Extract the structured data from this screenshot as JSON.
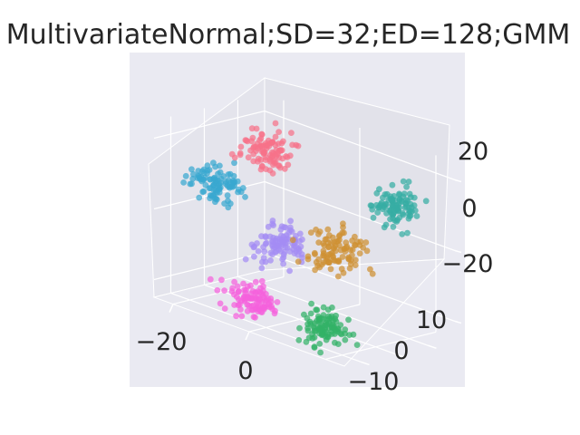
{
  "chart_data": {
    "type": "scatter3d",
    "title": "MultivariateNormal;SD=32;ED=128;GMM",
    "xlabel": "",
    "ylabel": "",
    "zlabel": "",
    "xlim": [
      -25,
      25
    ],
    "ylim": [
      -15,
      18
    ],
    "zlim": [
      -25,
      25
    ],
    "x_ticks": [
      "−20",
      "0"
    ],
    "y_ticks": [
      "−10",
      "0",
      "10"
    ],
    "z_ticks": [
      "−20",
      "0",
      "20"
    ],
    "grid": true,
    "legend": false,
    "points_per_cluster": 100,
    "clusters": [
      {
        "color": "#f77189",
        "center": [
          -10,
          2,
          18
        ],
        "spread": [
          2.5,
          2.5,
          2.5
        ]
      },
      {
        "color": "#39a7d0",
        "center": [
          -22,
          0,
          5
        ],
        "spread": [
          2.5,
          2.5,
          2.5
        ]
      },
      {
        "color": "#36ada4",
        "center": [
          18,
          8,
          12
        ],
        "spread": [
          2.5,
          2.5,
          2.5
        ]
      },
      {
        "color": "#ce9032",
        "center": [
          8,
          2,
          -3
        ],
        "spread": [
          3,
          3,
          3
        ]
      },
      {
        "color": "#a48cf4",
        "center": [
          -6,
          0,
          -6
        ],
        "spread": [
          2.5,
          2.5,
          2.5
        ]
      },
      {
        "color": "#f561dd",
        "center": [
          -10,
          -2,
          -23
        ],
        "spread": [
          2.5,
          2.5,
          2.5
        ]
      },
      {
        "color": "#32b166",
        "center": [
          14,
          -8,
          -20
        ],
        "spread": [
          2.5,
          2.5,
          2.5
        ]
      }
    ]
  }
}
